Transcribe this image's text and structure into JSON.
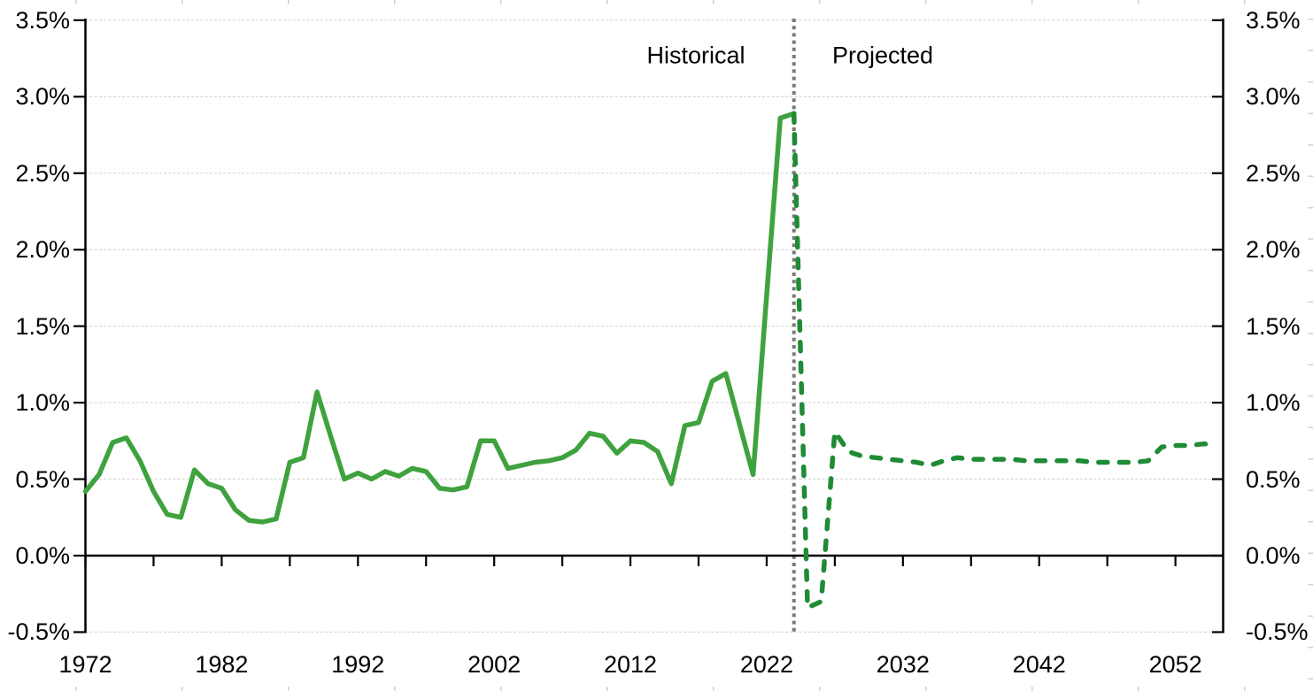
{
  "chart_data": {
    "type": "line",
    "title": "",
    "x_axis": {
      "tick_labels": [
        "1972",
        "1982",
        "1992",
        "2002",
        "2012",
        "2022",
        "2032",
        "2042",
        "2052"
      ],
      "major_tick_years": [
        1972,
        1982,
        1992,
        2002,
        2012,
        2022,
        2032,
        2042,
        2052
      ],
      "minor_tick_interval_years": 5,
      "range_years": [
        1972,
        2055
      ]
    },
    "y_axis": {
      "tick_labels": [
        "3.5%",
        "3.0%",
        "2.5%",
        "2.0%",
        "1.5%",
        "1.0%",
        "0.5%",
        "0.0%",
        "-0.5%"
      ],
      "tick_values": [
        3.5,
        3.0,
        2.5,
        2.0,
        1.5,
        1.0,
        0.5,
        0.0,
        -0.5
      ],
      "ylim": [
        -0.5,
        3.5
      ],
      "unit": "percent",
      "labels_on_both_sides": true
    },
    "series": [
      {
        "name": "Historical",
        "style": "solid",
        "color": "#3FA23F",
        "start_year": 1972,
        "end_year": 2024,
        "values": [
          0.42,
          0.53,
          0.74,
          0.77,
          0.62,
          0.42,
          0.27,
          0.25,
          0.56,
          0.47,
          0.44,
          0.3,
          0.23,
          0.22,
          0.24,
          0.61,
          0.64,
          1.07,
          0.78,
          0.5,
          0.54,
          0.5,
          0.55,
          0.52,
          0.57,
          0.55,
          0.44,
          0.43,
          0.45,
          0.75,
          0.75,
          0.57,
          0.59,
          0.61,
          0.62,
          0.64,
          0.69,
          0.8,
          0.78,
          0.67,
          0.75,
          0.74,
          0.68,
          0.47,
          0.85,
          0.87,
          1.14,
          1.19,
          0.86,
          0.53,
          1.7,
          2.86,
          2.89
        ]
      },
      {
        "name": "Projected",
        "style": "dashed",
        "color": "#1F8B35",
        "start_year": 2024,
        "end_year": 2055,
        "values": [
          2.89,
          -0.34,
          -0.3,
          0.81,
          0.68,
          0.65,
          0.64,
          0.63,
          0.62,
          0.61,
          0.59,
          0.62,
          0.64,
          0.63,
          0.63,
          0.63,
          0.63,
          0.62,
          0.62,
          0.62,
          0.62,
          0.62,
          0.61,
          0.61,
          0.61,
          0.61,
          0.62,
          0.71,
          0.72,
          0.72,
          0.73,
          0.73
        ]
      }
    ],
    "divider": {
      "year": 2024,
      "style": "dotted",
      "color": "#7A7A7A"
    },
    "annotations": {
      "historical": "Historical",
      "projected": "Projected"
    },
    "gridlines": {
      "horizontal": true,
      "style": "dashed",
      "color": "#D9D9D9"
    },
    "colors": {
      "axis": "#000000",
      "text": "#000000",
      "background": "#FFFFFF"
    }
  }
}
